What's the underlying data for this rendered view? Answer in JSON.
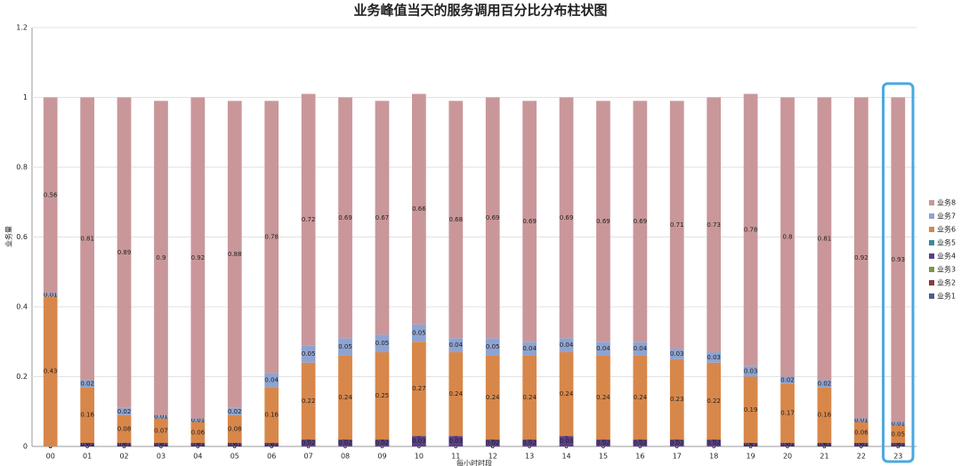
{
  "chart_data": {
    "type": "stacked_bar",
    "title": "业务峰值当天的服务调用百分比分布柱状图",
    "y_label": "业务量",
    "x_label": "每小时时段",
    "categories": [
      "00",
      "01",
      "02",
      "03",
      "04",
      "05",
      "06",
      "07",
      "08",
      "09",
      "10",
      "11",
      "12",
      "13",
      "14",
      "15",
      "16",
      "17",
      "18",
      "19",
      "20",
      "21",
      "22",
      "23"
    ],
    "ylim": [
      0,
      1.2
    ],
    "yticks": [
      0,
      0.2,
      0.4,
      0.6,
      0.8,
      1,
      1.2
    ],
    "grid": true,
    "legend": "right",
    "series": [
      {
        "name": "业务1",
        "color": "#4a5f8c",
        "values": [
          0,
          0,
          0,
          0,
          0,
          0,
          0,
          0,
          0,
          0,
          0,
          0,
          0,
          0,
          0,
          0,
          0,
          0,
          0,
          0,
          0,
          0,
          0,
          0
        ]
      },
      {
        "name": "业务2",
        "color": "#8b3a3a",
        "values": [
          0,
          0,
          0,
          0,
          0,
          0,
          0,
          0,
          0,
          0,
          0,
          0,
          0,
          0,
          0,
          0,
          0,
          0,
          0,
          0,
          0,
          0,
          0,
          0
        ]
      },
      {
        "name": "业务3",
        "color": "#7a9a3a",
        "values": [
          0,
          0,
          0,
          0,
          0,
          0,
          0,
          0,
          0,
          0,
          0,
          0,
          0,
          0,
          0,
          0,
          0,
          0,
          0,
          0,
          0,
          0,
          0,
          0
        ]
      },
      {
        "name": "业务4",
        "color": "#5a3f8a",
        "values": [
          0,
          0.01,
          0.01,
          0.01,
          0.01,
          0.01,
          0.01,
          0.02,
          0.02,
          0.02,
          0.03,
          0.03,
          0.02,
          0.02,
          0.03,
          0.02,
          0.02,
          0.02,
          0.02,
          0.01,
          0.01,
          0.01,
          0.01,
          0.01
        ]
      },
      {
        "name": "业务5",
        "color": "#3a8aa0",
        "values": [
          0,
          0,
          0,
          0,
          0,
          0,
          0,
          0,
          0,
          0,
          0,
          0,
          0,
          0,
          0,
          0,
          0,
          0,
          0,
          0,
          0,
          0,
          0,
          0
        ]
      },
      {
        "name": "业务6",
        "color": "#d8874a",
        "values": [
          0.43,
          0.16,
          0.08,
          0.07,
          0.06,
          0.08,
          0.16,
          0.22,
          0.24,
          0.25,
          0.27,
          0.24,
          0.24,
          0.24,
          0.24,
          0.24,
          0.24,
          0.23,
          0.22,
          0.19,
          0.17,
          0.16,
          0.06,
          0.05
        ]
      },
      {
        "name": "业务7",
        "color": "#8fa3d0",
        "values": [
          0.01,
          0.02,
          0.02,
          0.01,
          0.01,
          0.02,
          0.04,
          0.05,
          0.05,
          0.05,
          0.05,
          0.04,
          0.05,
          0.04,
          0.04,
          0.04,
          0.04,
          0.03,
          0.03,
          0.03,
          0.02,
          0.02,
          0.01,
          0.01
        ]
      },
      {
        "name": "业务8",
        "color": "#c9979a",
        "values": [
          0.56,
          0.81,
          0.89,
          0.9,
          0.92,
          0.88,
          0.78,
          0.72,
          0.69,
          0.67,
          0.66,
          0.68,
          0.69,
          0.69,
          0.69,
          0.69,
          0.69,
          0.71,
          0.73,
          0.78,
          0.8,
          0.81,
          0.92,
          0.93
        ]
      }
    ]
  }
}
